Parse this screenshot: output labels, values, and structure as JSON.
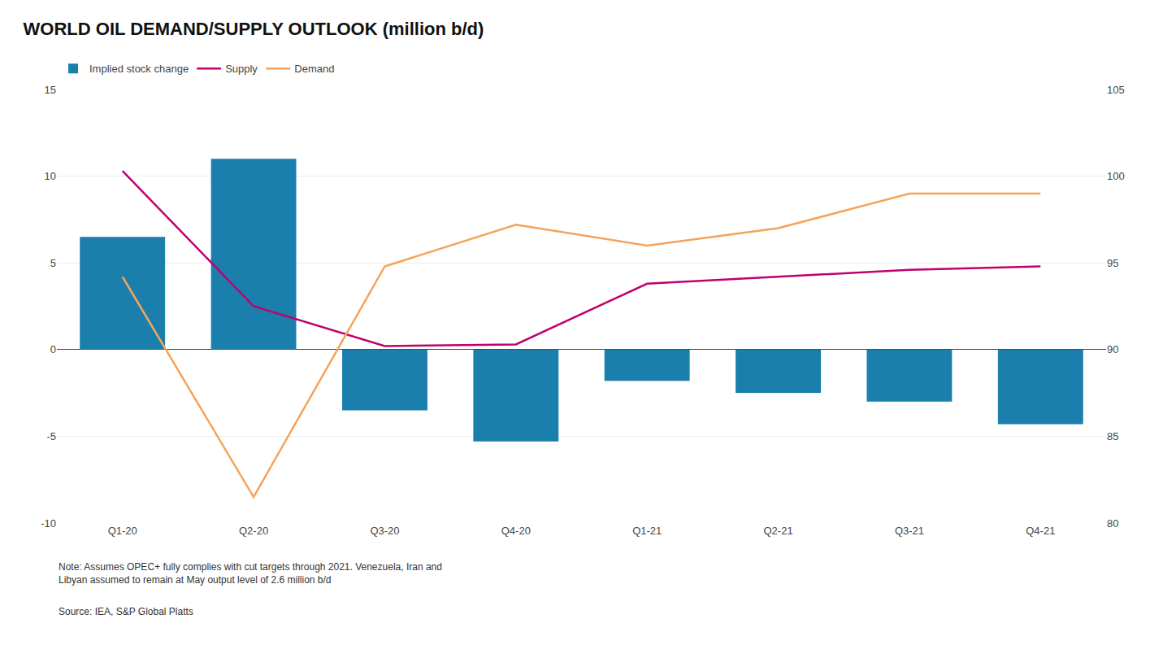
{
  "chart_data": {
    "type": "bar",
    "title": "WORLD OIL DEMAND/SUPPLY OUTLOOK (million b/d)",
    "categories": [
      "Q1-20",
      "Q2-20",
      "Q3-20",
      "Q4-20",
      "Q1-21",
      "Q2-21",
      "Q3-21",
      "Q4-21"
    ],
    "series": [
      {
        "name": "Implied stock change",
        "type": "bar",
        "color": "#1a7fad",
        "values": [
          6.5,
          11.0,
          -3.5,
          -5.3,
          -1.8,
          -2.5,
          -3.0,
          -4.3
        ]
      },
      {
        "name": "Supply",
        "type": "line",
        "axis": "y2",
        "color": "#c0006e",
        "values": [
          100.3,
          92.5,
          90.2,
          90.3,
          93.8,
          94.2,
          94.6,
          94.8
        ]
      },
      {
        "name": "Demand",
        "type": "line",
        "axis": "y2",
        "color": "#f5a35a",
        "values": [
          94.2,
          81.5,
          94.8,
          97.2,
          96.0,
          97.0,
          99.0,
          99.0
        ]
      }
    ],
    "ylim": [
      -10,
      15
    ],
    "yticks": [
      -10,
      -5,
      0,
      5,
      10,
      15
    ],
    "y2lim": [
      80,
      105
    ],
    "y2ticks": [
      80,
      85,
      90,
      95,
      100,
      105
    ],
    "grid": true,
    "legend": "top",
    "annotations": [
      "Note: Assumes OPEC+ fully complies with cut targets through 2021. Venezuela, Iran and\nLibyan assumed to remain at May output level of 2.6 million b/d",
      "Source: IEA, S&P Global Platts"
    ]
  }
}
